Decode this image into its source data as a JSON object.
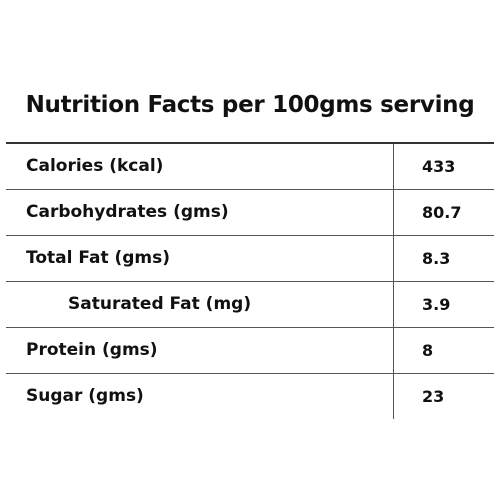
{
  "title": "Nutrition Facts per 100gms serving",
  "table": {
    "rows": [
      [
        "Calories (kcal)",
        "433"
      ],
      [
        "Carbohydrates (gms)",
        "80.7"
      ],
      [
        "Total Fat (gms)",
        "8.3"
      ],
      [
        "Saturated Fat (mg)",
        "3.9"
      ],
      [
        "Protein (gms)",
        "8"
      ],
      [
        "Sugar (gms)",
        "23"
      ]
    ]
  }
}
